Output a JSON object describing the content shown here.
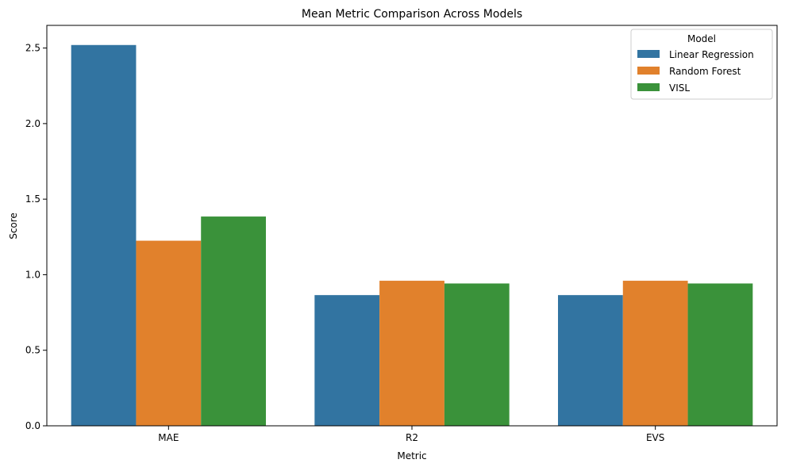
{
  "chart_data": {
    "type": "bar",
    "title": "Mean Metric Comparison Across Models",
    "xlabel": "Metric",
    "ylabel": "Score",
    "categories": [
      "MAE",
      "R2",
      "EVS"
    ],
    "series": [
      {
        "name": "Linear Regression",
        "color": "#3274a1",
        "values": [
          2.52,
          0.865,
          0.865
        ]
      },
      {
        "name": "Random Forest",
        "color": "#e1812c",
        "values": [
          1.225,
          0.96,
          0.96
        ]
      },
      {
        "name": "VISL",
        "color": "#3a923a",
        "values": [
          1.385,
          0.942,
          0.942
        ]
      }
    ],
    "ylim": [
      0,
      2.65
    ],
    "yticks": [
      "0.0",
      "0.5",
      "1.0",
      "1.5",
      "2.0",
      "2.5"
    ],
    "grid": false,
    "legend": {
      "title": "Model",
      "placement": "top-right"
    }
  }
}
